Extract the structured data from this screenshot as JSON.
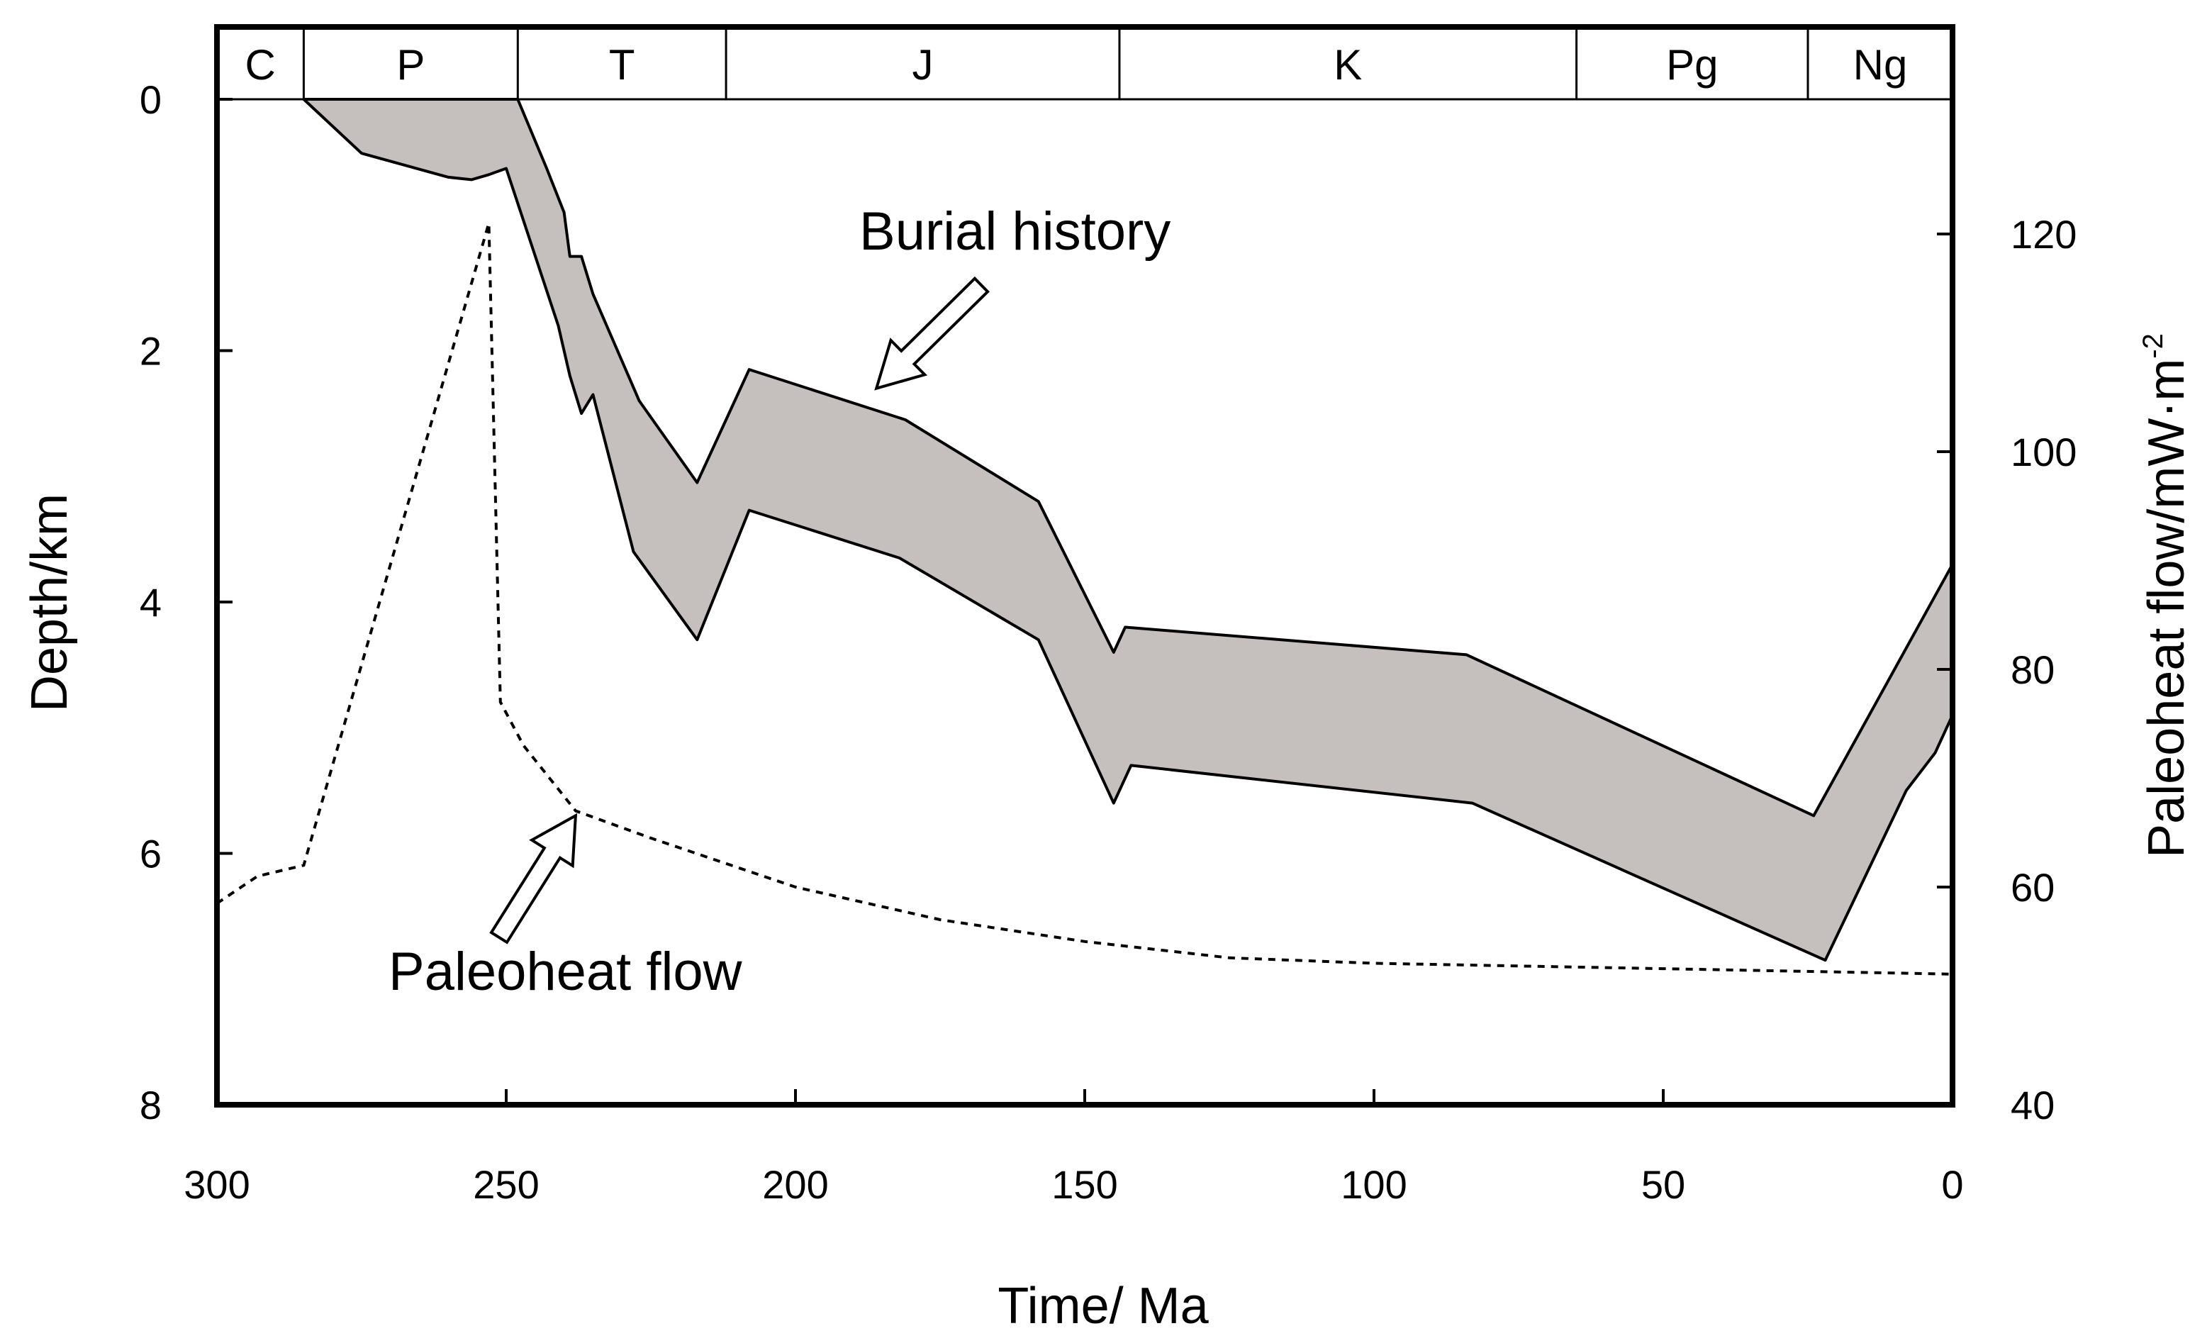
{
  "chart_data": {
    "type": "line",
    "title": "",
    "xlabel": "Time/ Ma",
    "ylabel": "Depth/km",
    "y2label_base": "Paleoheat flow/mW·m",
    "y2label_exp": "-2",
    "xlim": [
      300,
      0
    ],
    "ylim": [
      0,
      8
    ],
    "y2lim": [
      40,
      130
    ],
    "x_ticks": [
      "300",
      "250",
      "200",
      "150",
      "100",
      "50",
      "0"
    ],
    "y_ticks": [
      "0",
      "2",
      "4",
      "6",
      "8"
    ],
    "y2_ticks": [
      "40",
      "60",
      "80",
      "100",
      "120"
    ],
    "periods": [
      {
        "label": "C",
        "start": 300,
        "end": 285
      },
      {
        "label": "P",
        "start": 285,
        "end": 248
      },
      {
        "label": "T",
        "start": 248,
        "end": 212
      },
      {
        "label": "J",
        "start": 212,
        "end": 144
      },
      {
        "label": "K",
        "start": 144,
        "end": 65
      },
      {
        "label": "Pg",
        "start": 65,
        "end": 25
      },
      {
        "label": "Ng",
        "start": 25,
        "end": 0
      }
    ],
    "series": [
      {
        "name": "Burial history",
        "kind": "band",
        "top": [
          [
            285,
            0.0
          ],
          [
            248,
            0.0
          ],
          [
            243,
            0.55
          ],
          [
            240,
            0.9
          ],
          [
            239,
            1.25
          ],
          [
            237,
            1.25
          ],
          [
            235,
            1.55
          ],
          [
            227,
            2.4
          ],
          [
            217,
            3.05
          ],
          [
            208,
            2.15
          ],
          [
            181,
            2.55
          ],
          [
            158,
            3.2
          ],
          [
            145,
            4.4
          ],
          [
            143,
            4.2
          ],
          [
            84,
            4.42
          ],
          [
            24,
            5.7
          ],
          [
            0,
            3.7
          ]
        ],
        "bottom": [
          [
            0,
            4.9
          ],
          [
            3,
            5.2
          ],
          [
            8,
            5.5
          ],
          [
            22,
            6.85
          ],
          [
            83,
            5.6
          ],
          [
            142,
            5.3
          ],
          [
            145,
            5.6
          ],
          [
            158,
            4.3
          ],
          [
            182,
            3.65
          ],
          [
            208,
            3.27
          ],
          [
            217,
            4.3
          ],
          [
            228,
            3.6
          ],
          [
            235,
            2.35
          ],
          [
            237,
            2.5
          ],
          [
            239,
            2.2
          ],
          [
            241,
            1.8
          ],
          [
            250,
            0.55
          ],
          [
            253,
            0.6
          ],
          [
            256,
            0.64
          ],
          [
            260,
            0.62
          ],
          [
            275,
            0.43
          ],
          [
            285,
            0.0
          ]
        ]
      },
      {
        "name": "Paleoheat flow",
        "kind": "line",
        "points": [
          [
            300,
            58.5
          ],
          [
            293,
            61
          ],
          [
            285,
            62
          ],
          [
            253,
            121
          ],
          [
            251,
            77
          ],
          [
            247,
            73
          ],
          [
            238,
            67
          ],
          [
            225,
            64.5
          ],
          [
            200,
            60
          ],
          [
            175,
            57
          ],
          [
            150,
            55
          ],
          [
            125,
            53.5
          ],
          [
            100,
            53
          ],
          [
            50,
            52.5
          ],
          [
            0,
            52
          ]
        ]
      }
    ],
    "annotations": [
      {
        "text": "Burial history",
        "target": [
          186,
          2.3
        ]
      },
      {
        "text": "Paleoheat flow",
        "target": [
          238,
          5.7
        ]
      }
    ]
  }
}
